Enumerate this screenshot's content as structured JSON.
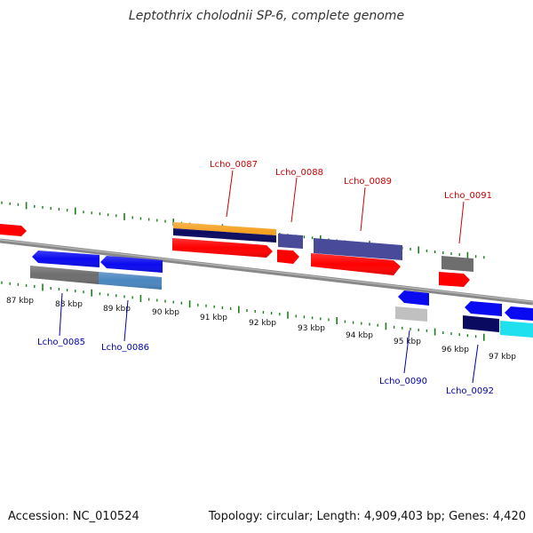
{
  "title": "Leptothrix cholodnii SP-6, complete genome",
  "footer": {
    "accession": "Accession: NC_010524",
    "summary": "Topology: circular; Length: 4,909,403 bp; Genes: 4,420"
  },
  "kbp_labels": [
    "87 kbp",
    "88 kbp",
    "89 kbp",
    "90 kbp",
    "91 kbp",
    "92 kbp",
    "93 kbp",
    "94 kbp",
    "95 kbp",
    "96 kbp",
    "97 kbp"
  ],
  "gene_labels": [
    {
      "id": "g87",
      "text": "Lcho_0087",
      "strand": "forward"
    },
    {
      "id": "g88",
      "text": "Lcho_0088",
      "strand": "forward"
    },
    {
      "id": "g89",
      "text": "Lcho_0089",
      "strand": "forward"
    },
    {
      "id": "g91",
      "text": "Lcho_0091",
      "strand": "forward"
    },
    {
      "id": "g85",
      "text": "Lcho_0085",
      "strand": "reverse"
    },
    {
      "id": "g86",
      "text": "Lcho_0086",
      "strand": "reverse"
    },
    {
      "id": "g90",
      "text": "Lcho_0090",
      "strand": "reverse"
    },
    {
      "id": "g92",
      "text": "Lcho_0092",
      "strand": "reverse"
    }
  ],
  "colors": {
    "forward_label": "#cc0000",
    "reverse_label": "#0000aa",
    "tick": "#1a7f1a",
    "backbone": "#888888",
    "red": "#ff0000",
    "blue": "#0a0af0",
    "orange": "#f5a020",
    "navy": "#0a0a60",
    "purple": "#4a4a9a",
    "gray": "#6e6e6e",
    "steel": "#4a86c0",
    "lightgray": "#c0c0c0",
    "cyan": "#20e0f0"
  }
}
